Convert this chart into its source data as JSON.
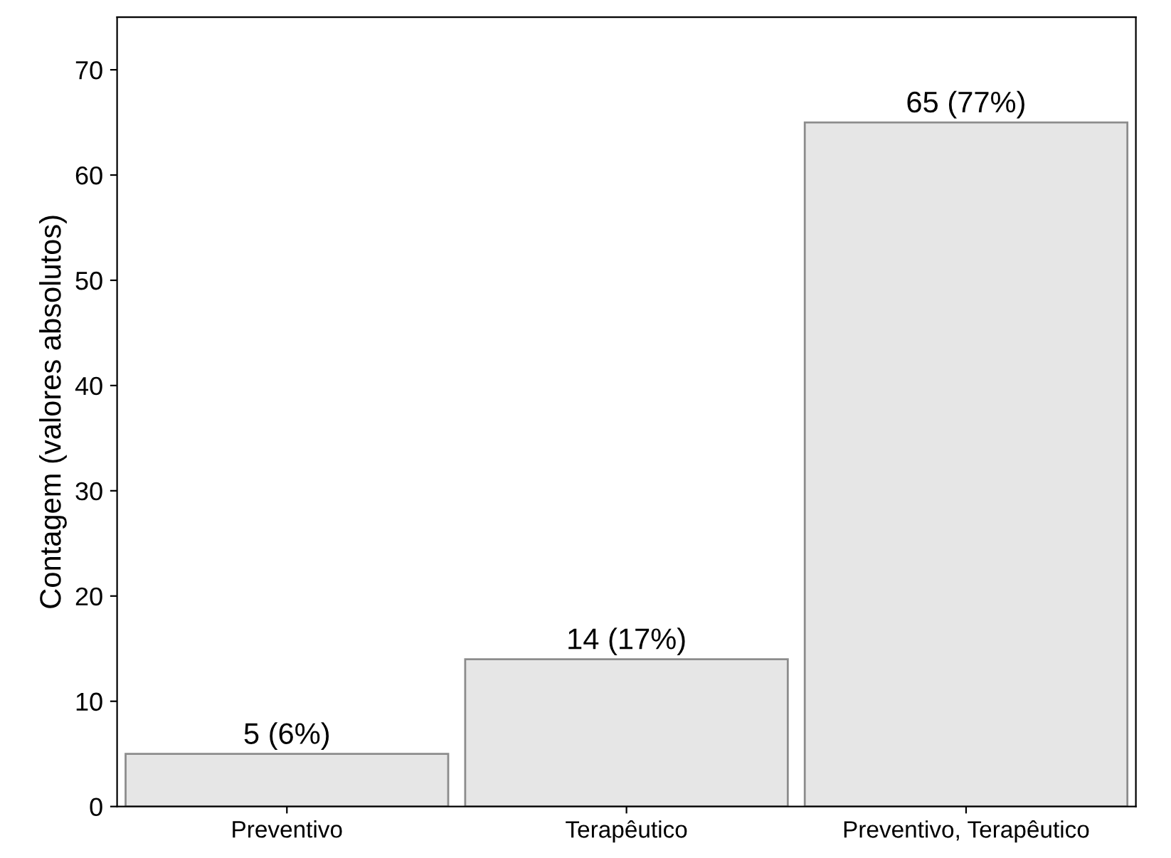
{
  "chart_data": {
    "type": "bar",
    "ylabel": "Contagem (valores absolutos)",
    "categories": [
      "Preventivo",
      "Terapêutico",
      "Preventivo, Terapêutico"
    ],
    "values": [
      5,
      14,
      65
    ],
    "color": "#e6e6e6",
    "value_labels": [
      "5 (6%)",
      "14 (17%)",
      "65 (77%)"
    ],
    "ylim": [
      0,
      75
    ],
    "yticks": [
      0,
      10,
      20,
      30,
      40,
      50,
      60,
      70
    ],
    "grid": false,
    "legend": false
  }
}
